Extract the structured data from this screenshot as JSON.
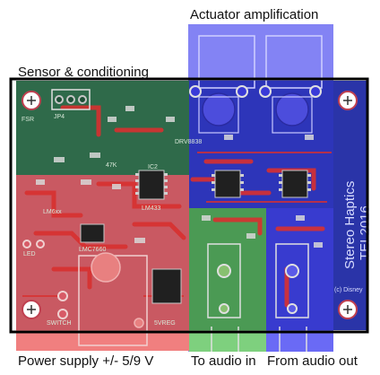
{
  "labels": {
    "sensor": "Sensor & conditioning",
    "actuator": "Actuator amplification",
    "power": "Power supply +/- 5/9 V",
    "to_audio": "To audio in",
    "from_audio": "From audio out"
  },
  "board": {
    "brand_line1": "Stereo Haptics",
    "brand_line2": "TEI 2016",
    "copyright": "(c) Disney",
    "silkscreen": {
      "jp4": "JP4",
      "ic2": "IC2",
      "lm6xx": "LM6xx",
      "lmc7660": "LMC7660",
      "lm433": "LM433",
      "switch": "SWITCH",
      "vreg": "5VREG",
      "led": "LED",
      "drv": "DRV8838",
      "fsr": "FSR",
      "cap": "47K"
    }
  },
  "colors": {
    "board": "#1f5a3a",
    "sensor_overlay": "#3f7a5a",
    "power_overlay": "#e06a6a",
    "actuator_overlay": "#4a4ae8",
    "audio_in_overlay": "#58b058",
    "trace": "#d83030",
    "outline": "#000000"
  }
}
